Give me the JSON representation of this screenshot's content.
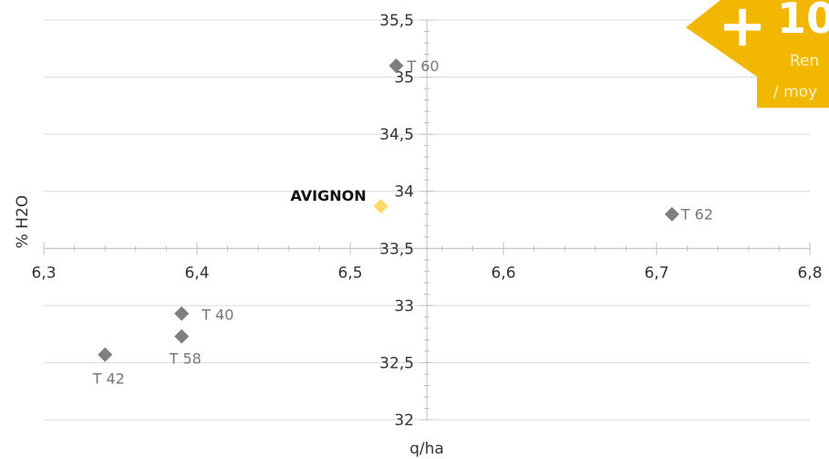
{
  "chart_data": {
    "type": "scatter",
    "xlabel": "q/ha",
    "ylabel": "% H2O",
    "xlim": [
      6.3,
      6.8
    ],
    "ylim": [
      32,
      35.5
    ],
    "x_ticks": [
      "6,3",
      "6,4",
      "6,5",
      "6,6",
      "6,7",
      "6,8"
    ],
    "y_ticks": [
      "32",
      "32,5",
      "33",
      "33,5",
      "34",
      "34,5",
      "35",
      "35,5"
    ],
    "grid": true,
    "points": [
      {
        "label": "T 60",
        "x": 6.53,
        "y": 35.1,
        "color": "#7f7f7f"
      },
      {
        "label": "AVIGNON",
        "x": 6.52,
        "y": 33.87,
        "color": "#ffd966",
        "highlight": true
      },
      {
        "label": "T 62",
        "x": 6.71,
        "y": 33.8,
        "color": "#7f7f7f"
      },
      {
        "label": "T 40",
        "x": 6.39,
        "y": 32.93,
        "color": "#7f7f7f"
      },
      {
        "label": "T 58",
        "x": 6.39,
        "y": 32.73,
        "color": "#7f7f7f"
      },
      {
        "label": "T 42",
        "x": 6.34,
        "y": 32.57,
        "color": "#7f7f7f"
      }
    ]
  },
  "badge": {
    "plus": "+",
    "value": "10",
    "line1": "Ren",
    "line2": "/ moy",
    "color": "#f2b700"
  }
}
